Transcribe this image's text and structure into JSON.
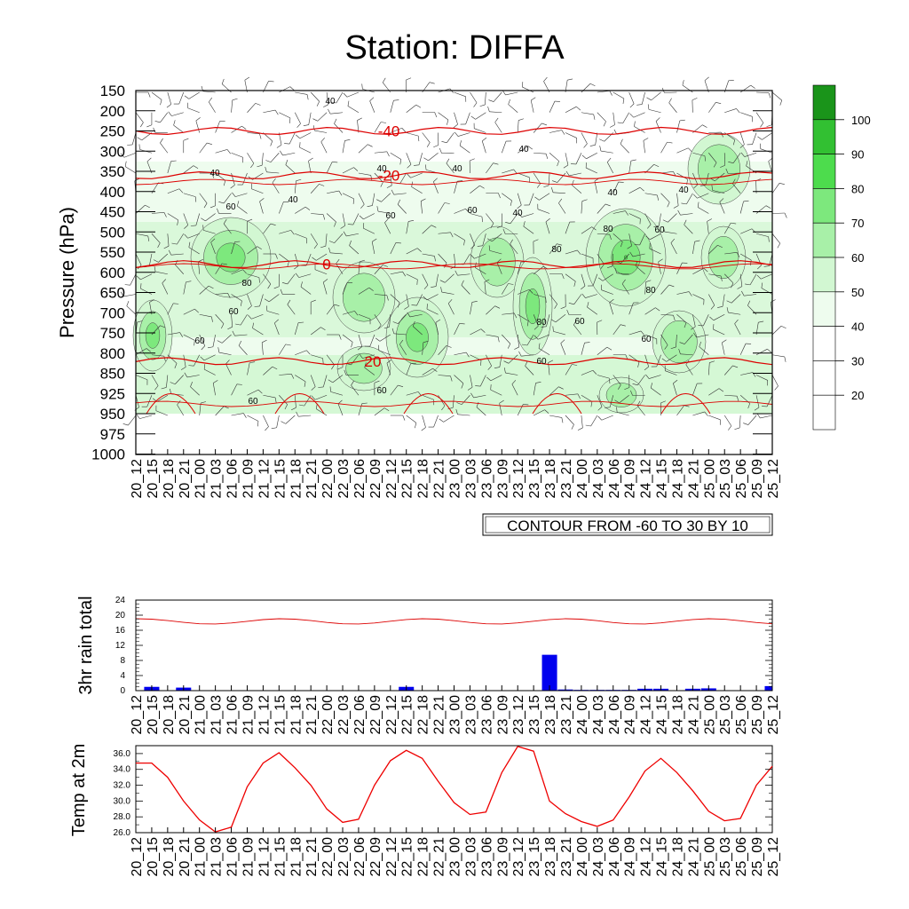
{
  "title": "Station: DIFFA",
  "time_labels": [
    "20_12",
    "20_15",
    "20_18",
    "20_21",
    "21_00",
    "21_03",
    "21_06",
    "21_09",
    "21_12",
    "21_15",
    "21_18",
    "21_21",
    "22_00",
    "22_03",
    "22_06",
    "22_09",
    "22_12",
    "22_15",
    "22_18",
    "22_21",
    "23_00",
    "23_03",
    "23_06",
    "23_09",
    "23_12",
    "23_15",
    "23_18",
    "23_21",
    "24_00",
    "24_03",
    "24_06",
    "24_09",
    "24_12",
    "24_15",
    "24_18",
    "24_21",
    "25_00",
    "25_03",
    "25_06",
    "25_09",
    "25_12"
  ],
  "chart_data": [
    {
      "type": "heatmap",
      "title": "Station: DIFFA",
      "ylabel": "Pressure (hPa)",
      "xlabel": "",
      "pressure_levels": [
        "150",
        "200",
        "250",
        "300",
        "350",
        "400",
        "450",
        "500",
        "550",
        "600",
        "650",
        "700",
        "750",
        "800",
        "850",
        "925",
        "950",
        "975",
        "1000"
      ],
      "colorbar": {
        "labels": [
          "20",
          "30",
          "40",
          "50",
          "60",
          "70",
          "80",
          "90",
          "100"
        ],
        "colors": [
          "#ffffff",
          "#ffffff",
          "#ffffff",
          "#eefcee",
          "#d2f7d2",
          "#a8f0a8",
          "#7de87d",
          "#4ddc4d",
          "#32c032",
          "#1a941a"
        ]
      },
      "temperature_contours": [
        {
          "label": "-40",
          "pressure": 250
        },
        {
          "label": "-20",
          "pressure": 360
        },
        {
          "label": "0",
          "pressure": 580
        },
        {
          "label": "20",
          "pressure": 820
        }
      ],
      "contour_note": "CONTOUR FROM -60 TO 30 BY 10",
      "rh_labels": [
        "40",
        "60",
        "80"
      ]
    },
    {
      "type": "bar",
      "ylabel": "3hr rain total",
      "ylim": [
        0,
        24
      ],
      "yticks": [
        "0",
        "4",
        "8",
        "12",
        "16",
        "20",
        "24"
      ],
      "bar_color": "#0000ee",
      "values": [
        0,
        1,
        0,
        0.8,
        0,
        0,
        0,
        0,
        0,
        0,
        0,
        0,
        0,
        0,
        0,
        0,
        0,
        1,
        0,
        0,
        0,
        0,
        0,
        0,
        0,
        0,
        9.5,
        0.3,
        0.2,
        0.2,
        0.2,
        0.2,
        0.5,
        0.5,
        0,
        0.5,
        0.6,
        0,
        0,
        0,
        1.2
      ]
    },
    {
      "type": "line",
      "ylabel": "Temp at 2m",
      "ylim": [
        26,
        37
      ],
      "yticks": [
        "26.0",
        "28.0",
        "30.0",
        "32.0",
        "34.0",
        "36.0"
      ],
      "line_color": "#ee0000",
      "values": [
        34.8,
        34.8,
        33.0,
        30.0,
        27.6,
        26.1,
        26.7,
        31.8,
        34.8,
        36.1,
        34.2,
        32.0,
        29.0,
        27.3,
        27.7,
        32.0,
        35.1,
        36.4,
        35.4,
        32.5,
        29.8,
        28.3,
        28.6,
        33.6,
        36.9,
        36.3,
        30.0,
        28.4,
        27.4,
        26.8,
        27.6,
        30.5,
        33.8,
        35.4,
        33.6,
        31.3,
        28.7,
        27.5,
        27.8,
        32.0,
        34.4
      ]
    }
  ]
}
